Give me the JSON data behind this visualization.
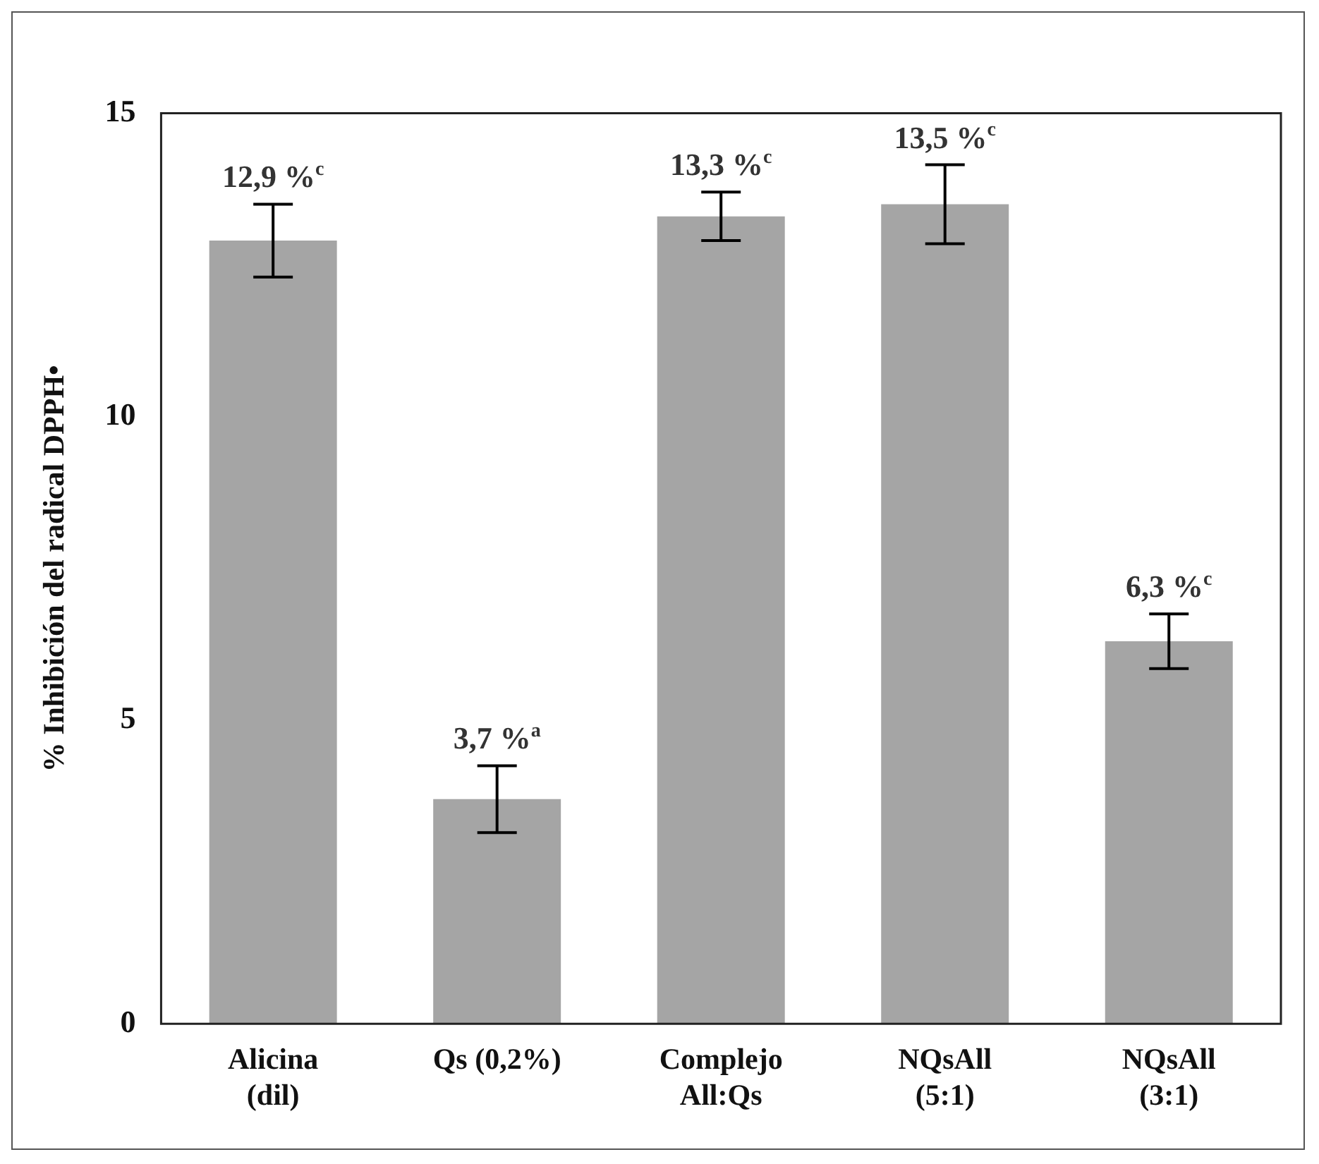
{
  "chart_data": {
    "type": "bar",
    "ylabel": "% Inhibición del radical DPPH•",
    "categories": [
      "Alicina\n(dil)",
      "Qs (0,2%)",
      "Complejo\nAll:Qs",
      "NQsAll\n(5:1)",
      "NQsAll\n(3:1)"
    ],
    "values": [
      12.9,
      3.7,
      13.3,
      13.5,
      6.3
    ],
    "errors": [
      0.6,
      0.55,
      0.4,
      0.65,
      0.45
    ],
    "value_labels": [
      "12,9 %$^{c}$",
      "3,7 %$^{a}$",
      "13,3 %$^{c}$",
      "13,5 %$^{c}$",
      "6,3 %$^{c}$"
    ],
    "color": "#a5a5a5",
    "ylim": [
      0,
      15
    ],
    "yticks": [
      0,
      5,
      10,
      15
    ],
    "grid": false,
    "legend": false
  }
}
